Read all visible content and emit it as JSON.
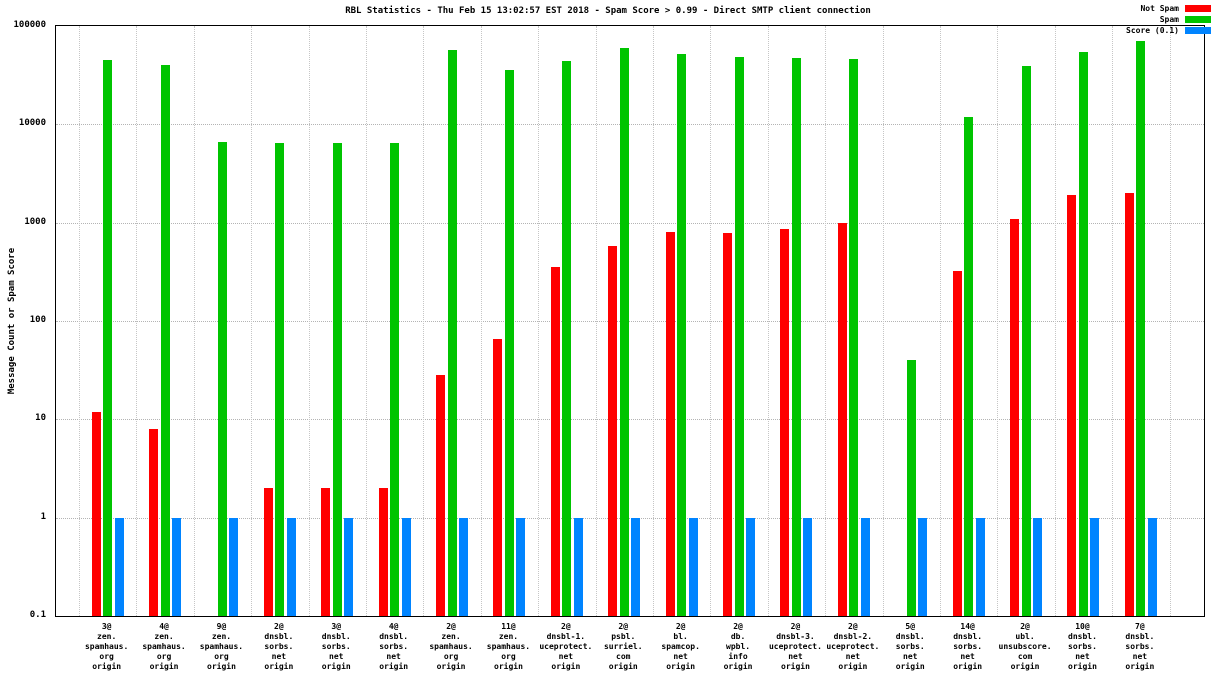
{
  "title": "RBL Statistics - Thu Feb 15 13:02:57 EST 2018 - Spam Score > 0.99 - Direct SMTP client connection",
  "chart_data": {
    "type": "bar",
    "title": "RBL Statistics - Thu Feb 15 13:02:57 EST 2018 - Spam Score > 0.99 - Direct SMTP client connection",
    "xlabel": "",
    "ylabel": "Message Count or Spam Score",
    "y_scale": "log",
    "ylim": [
      0.1,
      100000
    ],
    "yticks": [
      0.1,
      1,
      10,
      100,
      1000,
      10000,
      100000
    ],
    "grid": true,
    "legend_position": "top-right",
    "categories": [
      [
        "3@",
        "zen.",
        "spamhaus.",
        "org",
        "origin"
      ],
      [
        "4@",
        "zen.",
        "spamhaus.",
        "org",
        "origin"
      ],
      [
        "9@",
        "zen.",
        "spamhaus.",
        "org",
        "origin"
      ],
      [
        "2@",
        "dnsbl.",
        "sorbs.",
        "net",
        "origin"
      ],
      [
        "3@",
        "dnsbl.",
        "sorbs.",
        "net",
        "origin"
      ],
      [
        "4@",
        "dnsbl.",
        "sorbs.",
        "net",
        "origin"
      ],
      [
        "2@",
        "zen.",
        "spamhaus.",
        "org",
        "origin"
      ],
      [
        "11@",
        "zen.",
        "spamhaus.",
        "org",
        "origin"
      ],
      [
        "2@",
        "dnsbl-1.",
        "uceprotect.",
        "net",
        "origin"
      ],
      [
        "2@",
        "psbl.",
        "surriel.",
        "com",
        "origin"
      ],
      [
        "2@",
        "bl.",
        "spamcop.",
        "net",
        "origin"
      ],
      [
        "2@",
        "db.",
        "wpbl.",
        "info",
        "origin"
      ],
      [
        "2@",
        "dnsbl-3.",
        "uceprotect.",
        "net",
        "origin"
      ],
      [
        "2@",
        "dnsbl-2.",
        "uceprotect.",
        "net",
        "origin"
      ],
      [
        "5@",
        "dnsbl.",
        "sorbs.",
        "net",
        "origin"
      ],
      [
        "14@",
        "dnsbl.",
        "sorbs.",
        "net",
        "origin"
      ],
      [
        "2@",
        "ubl.",
        "unsubscore.",
        "com",
        "origin"
      ],
      [
        "10@",
        "dnsbl.",
        "sorbs.",
        "net",
        "origin"
      ],
      [
        "7@",
        "dnsbl.",
        "sorbs.",
        "net",
        "origin"
      ]
    ],
    "series": [
      {
        "name": "Not Spam",
        "color": "#ff0000",
        "values": [
          12,
          8,
          null,
          2,
          2,
          2,
          28,
          65,
          350,
          580,
          800,
          780,
          860,
          1000,
          null,
          320,
          1100,
          1900,
          2000
        ]
      },
      {
        "name": "Spam",
        "color": "#00c400",
        "values": [
          45000,
          40000,
          6600,
          6500,
          6500,
          6500,
          57000,
          36000,
          44000,
          60000,
          52000,
          48000,
          47000,
          46000,
          40,
          12000,
          39000,
          55000,
          70000
        ]
      },
      {
        "name": "Score (0.1)",
        "color": "#0084ff",
        "values": [
          1,
          1,
          1,
          1,
          1,
          1,
          1,
          1,
          1,
          1,
          1,
          1,
          1,
          1,
          1,
          1,
          1,
          1,
          1
        ]
      }
    ]
  }
}
